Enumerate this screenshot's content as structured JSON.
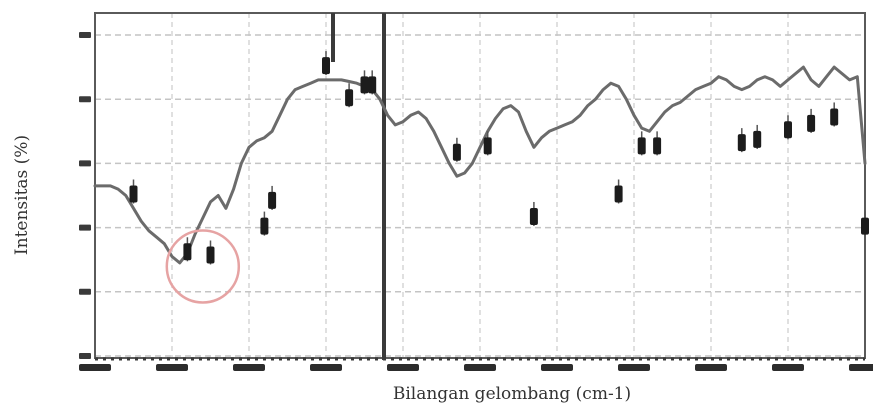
{
  "chart_data": {
    "type": "line",
    "title": "",
    "xlabel": "Bilangan gelombang (cm-1)",
    "ylabel": "Intensitas (%)",
    "grid": true,
    "legend": "none",
    "x_direction": "decreasing",
    "x_tick_count": 11,
    "y_tick_count": 6,
    "x": [
      0,
      1,
      2,
      3,
      4,
      5,
      6,
      7,
      8,
      9,
      10,
      11,
      12,
      13,
      14,
      15,
      16,
      17,
      18,
      19,
      20,
      21,
      22,
      23,
      24,
      25,
      26,
      27,
      28,
      29,
      30,
      31,
      32,
      33,
      34,
      35,
      36,
      37,
      38,
      39,
      40,
      41,
      42,
      43,
      44,
      45,
      46,
      47,
      48,
      49,
      50,
      51,
      52,
      53,
      54,
      55,
      56,
      57,
      58,
      59,
      60,
      61,
      62,
      63,
      64,
      65,
      66,
      67,
      68,
      69,
      70,
      71,
      72,
      73,
      74,
      75,
      76,
      77,
      78,
      79,
      80,
      81,
      82,
      83,
      84,
      85,
      86,
      87,
      88,
      89,
      90,
      91,
      92,
      93,
      94,
      95,
      96,
      97,
      98,
      99,
      100
    ],
    "series": [
      {
        "color": "#6b6b6b",
        "values": [
          53,
          53,
          53,
          52,
          50,
          46,
          42,
          39,
          37,
          35,
          31,
          29,
          32,
          38,
          43,
          48,
          50,
          46,
          52,
          60,
          65,
          67,
          68,
          70,
          75,
          80,
          83,
          84,
          85,
          86,
          86,
          86,
          86,
          85.5,
          85,
          84,
          83,
          80,
          75,
          72,
          73,
          75,
          76,
          74,
          70,
          65,
          60,
          56,
          57,
          60,
          65,
          70,
          74,
          77,
          78,
          76,
          70,
          65,
          68,
          70,
          71,
          72,
          73,
          75,
          78,
          80,
          83,
          85,
          84,
          80,
          75,
          71,
          70,
          73,
          76,
          78,
          79,
          81,
          83,
          84,
          85,
          87,
          86,
          84,
          83,
          84,
          86,
          87,
          86,
          84,
          86,
          88,
          90,
          86,
          84,
          87,
          90,
          88,
          86,
          87,
          60
        ]
      }
    ],
    "peaks": [
      {
        "x": 5,
        "y": 50
      },
      {
        "x": 12,
        "y": 32
      },
      {
        "x": 15,
        "y": 31
      },
      {
        "x": 22,
        "y": 40
      },
      {
        "x": 23,
        "y": 48
      },
      {
        "x": 30,
        "y": 90
      },
      {
        "x": 33,
        "y": 80
      },
      {
        "x": 35,
        "y": 84
      },
      {
        "x": 36,
        "y": 84
      },
      {
        "x": 47,
        "y": 63
      },
      {
        "x": 51,
        "y": 65
      },
      {
        "x": 57,
        "y": 43
      },
      {
        "x": 68,
        "y": 50
      },
      {
        "x": 71,
        "y": 65
      },
      {
        "x": 73,
        "y": 65
      },
      {
        "x": 84,
        "y": 66
      },
      {
        "x": 86,
        "y": 67
      },
      {
        "x": 90,
        "y": 70
      },
      {
        "x": 93,
        "y": 72
      },
      {
        "x": 96,
        "y": 74
      },
      {
        "x": 100,
        "y": 40
      }
    ],
    "highlighted_peak": {
      "x": 14,
      "y": 31
    }
  }
}
